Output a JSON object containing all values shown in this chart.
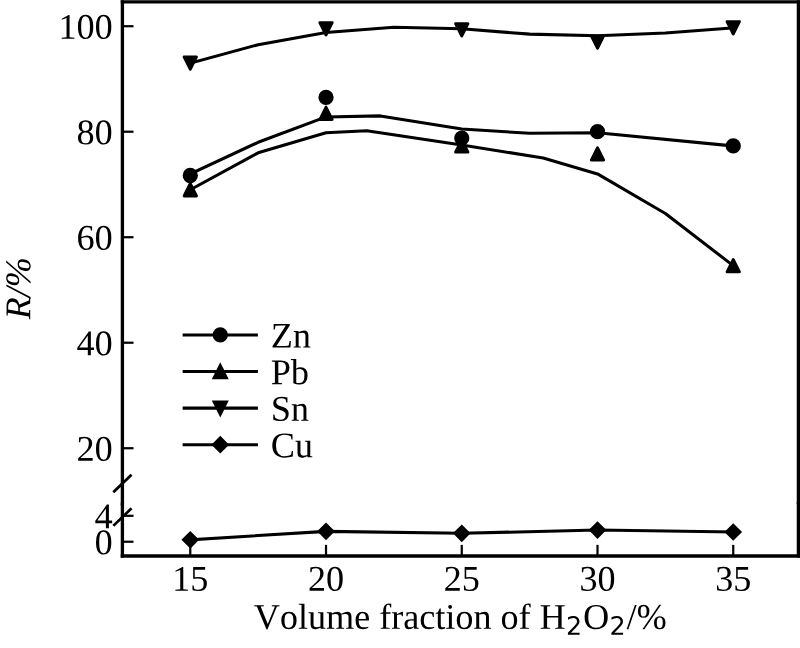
{
  "chart_data": [
    {
      "type": "line",
      "ylabel": "R/%",
      "xlim": [
        12.5,
        37.4
      ],
      "ylim": [
        9.4,
        104.6
      ],
      "yticks": [
        20,
        40,
        60,
        80,
        100
      ],
      "tick_labels": "y",
      "grid": false,
      "legend": "left",
      "series": [
        {
          "name": "Zn",
          "type": "scatter",
          "marker": "circle",
          "color": "#000000",
          "x": [
            15,
            20,
            25,
            30,
            35
          ],
          "values": [
            71.7,
            86.5,
            78.8,
            80.0,
            77.3
          ]
        },
        {
          "name": "Pb",
          "type": "scatter",
          "marker": "triangle",
          "color": "#000000",
          "x": [
            15,
            20,
            25,
            30,
            35
          ],
          "values": [
            69.0,
            83.5,
            77.3,
            75.8,
            54.6
          ]
        },
        {
          "name": "Sn",
          "type": "scatter",
          "marker": "triangle_down",
          "color": "#000000",
          "x": [
            15,
            20,
            25,
            30,
            35
          ],
          "values": [
            93.0,
            99.5,
            99.3,
            97.0,
            99.7
          ]
        },
        {
          "marker": "none",
          "color": "#000000",
          "x": [
            15,
            17.5,
            20,
            22,
            25,
            27.5,
            30,
            35
          ],
          "values": [
            72,
            78,
            82.8,
            83,
            80.5,
            79.7,
            79.8,
            77.3
          ]
        },
        {
          "marker": "none",
          "color": "#000000",
          "x": [
            15,
            17.5,
            20,
            21.5,
            25,
            28,
            30,
            32.5,
            35
          ],
          "values": [
            69,
            76,
            79.8,
            80.2,
            77.5,
            75,
            72,
            64.5,
            54.6
          ]
        },
        {
          "marker": "none",
          "color": "#000000",
          "x": [
            15,
            17.5,
            20,
            22.5,
            25,
            27.5,
            30,
            32.5,
            35
          ],
          "values": [
            93,
            96.5,
            98.8,
            99.8,
            99.5,
            98.5,
            98.2,
            98.7,
            99.7
          ]
        }
      ]
    },
    {
      "type": "line",
      "xlabel": "Volume fraction of H$_{2}$O$_{2}$/%",
      "xlim": [
        12.5,
        37.4
      ],
      "xticks": [
        15,
        20,
        25,
        30,
        35
      ],
      "ylim": [
        -2.2,
        5.8
      ],
      "yticks": [
        0,
        4
      ],
      "grid": false,
      "series": [
        {
          "name": "Cu",
          "marker": "diamond",
          "color": "#000000",
          "x": [
            15,
            20,
            25,
            30,
            35
          ],
          "values": [
            0.3,
            1.6,
            1.3,
            1.8,
            1.5
          ]
        }
      ]
    }
  ]
}
